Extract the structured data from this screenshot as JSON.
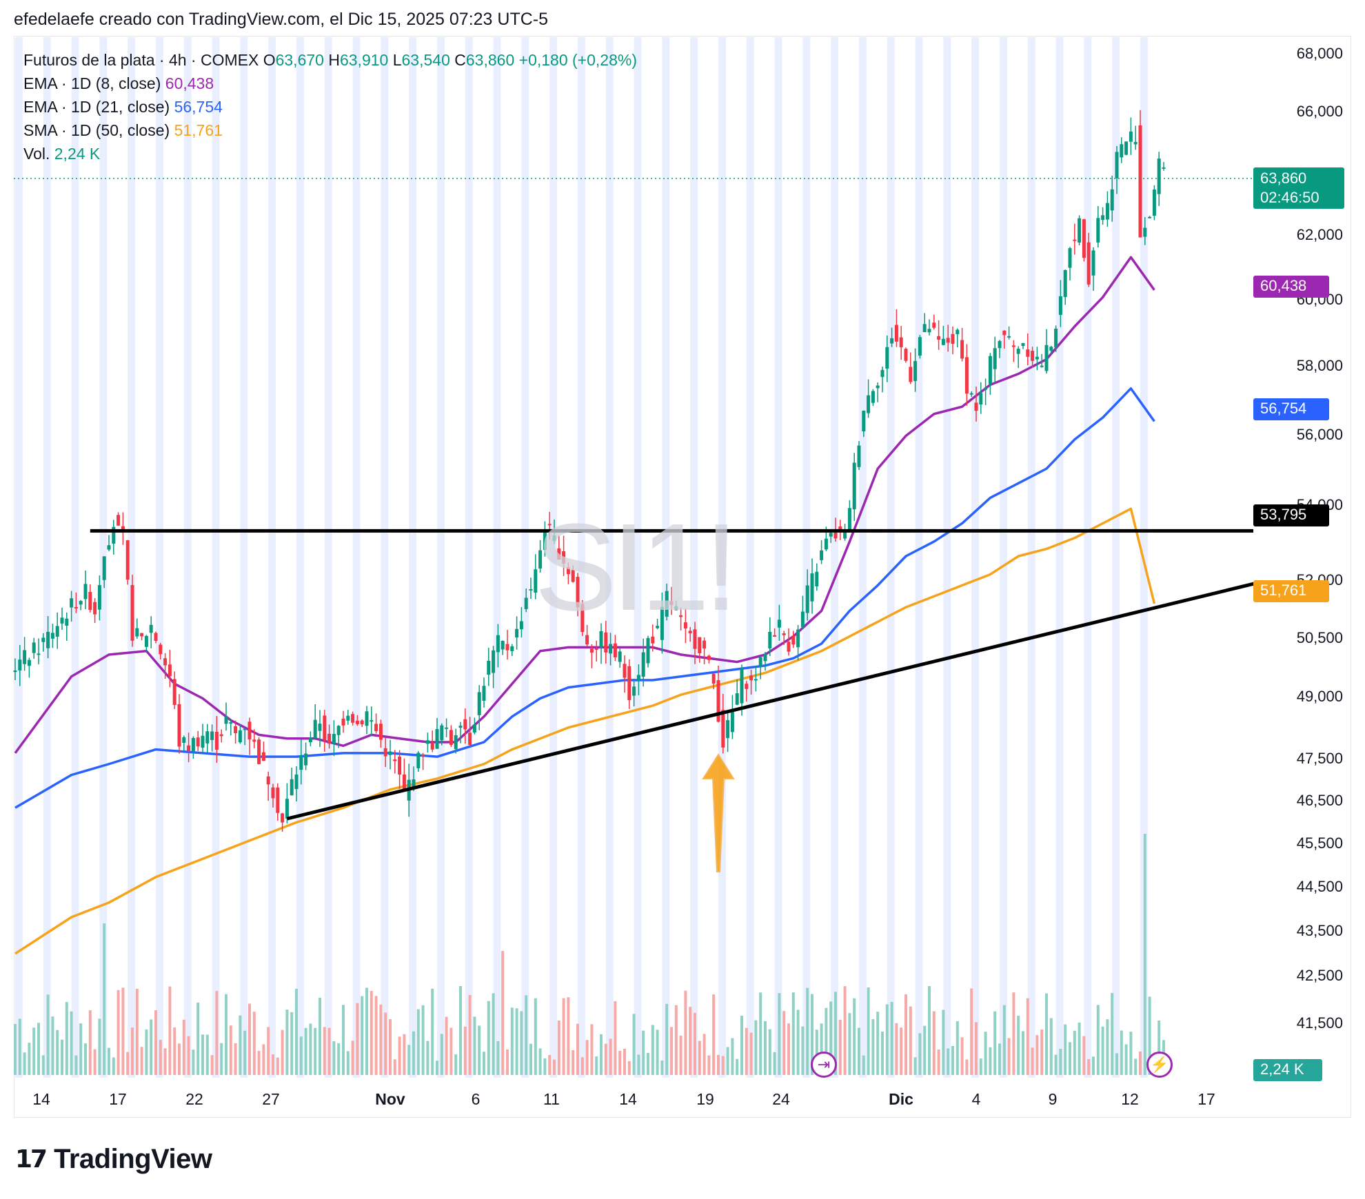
{
  "header": {
    "title": "efedelaefe creado con TradingView.com, el Dic 15, 2025 07:23 UTC-5"
  },
  "legend": {
    "symbol": "Futuros de la plata · 4h · COMEX",
    "o_label": "O",
    "o_value": "63,670",
    "h_label": "H",
    "h_value": "63,910",
    "l_label": "L",
    "l_value": "63,540",
    "c_label": "C",
    "c_value": "63,860",
    "change": "+0,180 (+0,28%)",
    "ema8_label": "EMA · 1D (8, close)",
    "ema8_value": "60,438",
    "ema21_label": "EMA · 1D (21, close)",
    "ema21_value": "56,754",
    "sma50_label": "SMA · 1D (50, close)",
    "sma50_value": "51,761",
    "vol_label": "Vol.",
    "vol_value": "2,24 K"
  },
  "watermark": "SI1!",
  "price_tags": {
    "last_price": "63,860",
    "countdown": "02:46:50",
    "ema8": "60,438",
    "ema21": "56,754",
    "hline": "53,795",
    "sma50": "51,761",
    "volume": "2,24 K"
  },
  "colors": {
    "up": "#089981",
    "down": "#f23645",
    "ema8": "#9c27b0",
    "ema21": "#2962ff",
    "sma50": "#f7a21b",
    "session": "#e9efff"
  },
  "footer": {
    "brand": "TradingView",
    "logo_icon": "tradingview-logo-icon"
  },
  "icons": {
    "replay": "replay-icon",
    "lightning": "lightning-icon"
  },
  "chart_data": {
    "type": "candlestick",
    "title": "Futuros de la plata · 4h · COMEX",
    "y_ticks": [
      "68,000",
      "66,000",
      "62,000",
      "60,000",
      "58,000",
      "56,000",
      "54,000",
      "52,000",
      "50,500",
      "49,000",
      "47,500",
      "46,500",
      "45,500",
      "44,500",
      "43,500",
      "42,500",
      "41,500"
    ],
    "x_ticks": [
      {
        "label": "14",
        "bold": false
      },
      {
        "label": "17",
        "bold": false
      },
      {
        "label": "22",
        "bold": false
      },
      {
        "label": "27",
        "bold": false
      },
      {
        "label": "Nov",
        "bold": true
      },
      {
        "label": "6",
        "bold": false
      },
      {
        "label": "11",
        "bold": false
      },
      {
        "label": "14",
        "bold": false
      },
      {
        "label": "19",
        "bold": false
      },
      {
        "label": "24",
        "bold": false
      },
      {
        "label": "Dic",
        "bold": true
      },
      {
        "label": "4",
        "bold": false
      },
      {
        "label": "9",
        "bold": false
      },
      {
        "label": "12",
        "bold": false
      },
      {
        "label": "17",
        "bold": false
      }
    ],
    "price_path": [
      [
        0,
        50.0
      ],
      [
        6,
        50.6
      ],
      [
        11,
        51.4
      ],
      [
        14,
        51.9
      ],
      [
        16,
        52.1
      ],
      [
        18,
        51.6
      ],
      [
        20,
        53.3
      ],
      [
        22,
        54.0
      ],
      [
        24,
        53.5
      ],
      [
        26,
        51.0
      ],
      [
        28,
        50.8
      ],
      [
        30,
        51.2
      ],
      [
        32,
        50.5
      ],
      [
        34,
        49.8
      ],
      [
        36,
        48.0
      ],
      [
        38,
        47.9
      ],
      [
        42,
        48.3
      ],
      [
        44,
        48.0
      ],
      [
        46,
        48.6
      ],
      [
        48,
        48.2
      ],
      [
        50,
        48.5
      ],
      [
        52,
        47.9
      ],
      [
        54,
        47.3
      ],
      [
        56,
        46.7
      ],
      [
        58,
        45.8
      ],
      [
        60,
        46.9
      ],
      [
        62,
        47.5
      ],
      [
        64,
        48.2
      ],
      [
        66,
        48.6
      ],
      [
        68,
        47.8
      ],
      [
        70,
        48.4
      ],
      [
        72,
        48.9
      ],
      [
        74,
        48.5
      ],
      [
        76,
        48.8
      ],
      [
        78,
        48.3
      ],
      [
        80,
        47.8
      ],
      [
        82,
        47.4
      ],
      [
        84,
        46.6
      ],
      [
        86,
        47.2
      ],
      [
        88,
        47.8
      ],
      [
        90,
        48.0
      ],
      [
        92,
        48.4
      ],
      [
        94,
        48.0
      ],
      [
        96,
        48.7
      ],
      [
        98,
        48.1
      ],
      [
        100,
        49.3
      ],
      [
        102,
        50.1
      ],
      [
        104,
        50.7
      ],
      [
        106,
        50.6
      ],
      [
        108,
        51.0
      ],
      [
        110,
        52.0
      ],
      [
        112,
        52.6
      ],
      [
        114,
        54.0
      ],
      [
        116,
        53.5
      ],
      [
        118,
        53.0
      ],
      [
        120,
        52.4
      ],
      [
        122,
        51.0
      ],
      [
        124,
        50.6
      ],
      [
        126,
        50.8
      ],
      [
        128,
        50.5
      ],
      [
        130,
        50.3
      ],
      [
        132,
        49.4
      ],
      [
        134,
        50.0
      ],
      [
        136,
        50.8
      ],
      [
        138,
        51.0
      ],
      [
        140,
        52.0
      ],
      [
        142,
        51.6
      ],
      [
        144,
        50.9
      ],
      [
        146,
        50.8
      ],
      [
        148,
        50.5
      ],
      [
        150,
        49.6
      ],
      [
        152,
        48.0
      ],
      [
        154,
        48.8
      ],
      [
        156,
        49.8
      ],
      [
        158,
        49.6
      ],
      [
        160,
        50.1
      ],
      [
        162,
        51.0
      ],
      [
        164,
        51.2
      ],
      [
        166,
        50.7
      ],
      [
        168,
        51.0
      ],
      [
        170,
        52.1
      ],
      [
        172,
        52.8
      ],
      [
        174,
        53.5
      ],
      [
        176,
        53.7
      ],
      [
        178,
        53.6
      ],
      [
        180,
        55.5
      ],
      [
        182,
        57.2
      ],
      [
        184,
        57.8
      ],
      [
        186,
        58.2
      ],
      [
        188,
        59.2
      ],
      [
        190,
        58.8
      ],
      [
        192,
        58.1
      ],
      [
        194,
        59.1
      ],
      [
        196,
        59.4
      ],
      [
        198,
        58.9
      ],
      [
        200,
        59.0
      ],
      [
        202,
        59.1
      ],
      [
        204,
        57.8
      ],
      [
        206,
        57.2
      ],
      [
        208,
        57.7
      ],
      [
        210,
        59.0
      ],
      [
        212,
        59.2
      ],
      [
        214,
        58.8
      ],
      [
        216,
        59.0
      ],
      [
        218,
        58.6
      ],
      [
        220,
        58.4
      ],
      [
        222,
        59.0
      ],
      [
        224,
        60.0
      ],
      [
        226,
        61.7
      ],
      [
        228,
        62.2
      ],
      [
        230,
        60.8
      ],
      [
        232,
        62.4
      ],
      [
        234,
        62.7
      ],
      [
        236,
        64.1
      ],
      [
        238,
        64.5
      ],
      [
        240,
        64.7
      ],
      [
        241,
        61.9
      ],
      [
        243,
        62.5
      ],
      [
        245,
        63.8
      ],
      [
        246,
        63.9
      ]
    ],
    "ema8": [
      [
        0,
        47.7
      ],
      [
        12,
        49.8
      ],
      [
        20,
        50.4
      ],
      [
        28,
        50.5
      ],
      [
        34,
        49.6
      ],
      [
        40,
        49.2
      ],
      [
        46,
        48.6
      ],
      [
        52,
        48.2
      ],
      [
        58,
        48.1
      ],
      [
        64,
        48.1
      ],
      [
        70,
        47.9
      ],
      [
        76,
        48.2
      ],
      [
        82,
        48.1
      ],
      [
        88,
        48.0
      ],
      [
        94,
        48.0
      ],
      [
        100,
        48.7
      ],
      [
        106,
        49.6
      ],
      [
        112,
        50.5
      ],
      [
        118,
        50.6
      ],
      [
        124,
        50.6
      ],
      [
        130,
        50.6
      ],
      [
        136,
        50.6
      ],
      [
        142,
        50.4
      ],
      [
        148,
        50.3
      ],
      [
        154,
        50.2
      ],
      [
        160,
        50.4
      ],
      [
        166,
        50.9
      ],
      [
        172,
        51.6
      ],
      [
        178,
        53.5
      ],
      [
        184,
        55.5
      ],
      [
        190,
        56.4
      ],
      [
        196,
        57.0
      ],
      [
        202,
        57.2
      ],
      [
        208,
        57.8
      ],
      [
        214,
        58.1
      ],
      [
        220,
        58.5
      ],
      [
        226,
        59.4
      ],
      [
        232,
        60.2
      ],
      [
        238,
        61.3
      ],
      [
        243,
        60.4
      ]
    ],
    "ema21": [
      [
        0,
        46.2
      ],
      [
        12,
        47.1
      ],
      [
        20,
        47.4
      ],
      [
        30,
        47.8
      ],
      [
        40,
        47.7
      ],
      [
        50,
        47.6
      ],
      [
        60,
        47.6
      ],
      [
        70,
        47.7
      ],
      [
        80,
        47.7
      ],
      [
        90,
        47.6
      ],
      [
        100,
        48.0
      ],
      [
        106,
        48.7
      ],
      [
        112,
        49.2
      ],
      [
        118,
        49.5
      ],
      [
        124,
        49.6
      ],
      [
        130,
        49.7
      ],
      [
        136,
        49.7
      ],
      [
        142,
        49.8
      ],
      [
        148,
        49.9
      ],
      [
        154,
        50.0
      ],
      [
        160,
        50.1
      ],
      [
        166,
        50.3
      ],
      [
        172,
        50.7
      ],
      [
        178,
        51.6
      ],
      [
        184,
        52.3
      ],
      [
        190,
        53.1
      ],
      [
        196,
        53.5
      ],
      [
        202,
        54.0
      ],
      [
        208,
        54.7
      ],
      [
        214,
        55.1
      ],
      [
        220,
        55.5
      ],
      [
        226,
        56.3
      ],
      [
        232,
        56.9
      ],
      [
        238,
        57.7
      ],
      [
        243,
        56.8
      ]
    ],
    "sma50": [
      [
        0,
        42.2
      ],
      [
        12,
        43.2
      ],
      [
        20,
        43.6
      ],
      [
        30,
        44.3
      ],
      [
        40,
        44.8
      ],
      [
        50,
        45.3
      ],
      [
        60,
        45.8
      ],
      [
        70,
        46.2
      ],
      [
        80,
        46.7
      ],
      [
        90,
        47.0
      ],
      [
        100,
        47.4
      ],
      [
        106,
        47.8
      ],
      [
        112,
        48.1
      ],
      [
        118,
        48.4
      ],
      [
        124,
        48.6
      ],
      [
        130,
        48.8
      ],
      [
        136,
        49.0
      ],
      [
        142,
        49.3
      ],
      [
        148,
        49.5
      ],
      [
        154,
        49.7
      ],
      [
        160,
        49.9
      ],
      [
        166,
        50.2
      ],
      [
        172,
        50.5
      ],
      [
        178,
        50.9
      ],
      [
        184,
        51.3
      ],
      [
        190,
        51.7
      ],
      [
        196,
        52.0
      ],
      [
        202,
        52.3
      ],
      [
        208,
        52.6
      ],
      [
        214,
        53.1
      ],
      [
        220,
        53.3
      ],
      [
        226,
        53.6
      ],
      [
        232,
        54.0
      ],
      [
        238,
        54.4
      ],
      [
        243,
        51.8
      ]
    ],
    "horizontal_line": 53.795,
    "trendline": [
      [
        58,
        45.9
      ],
      [
        266,
        52.4
      ]
    ],
    "arrow_at_index": 150
  }
}
